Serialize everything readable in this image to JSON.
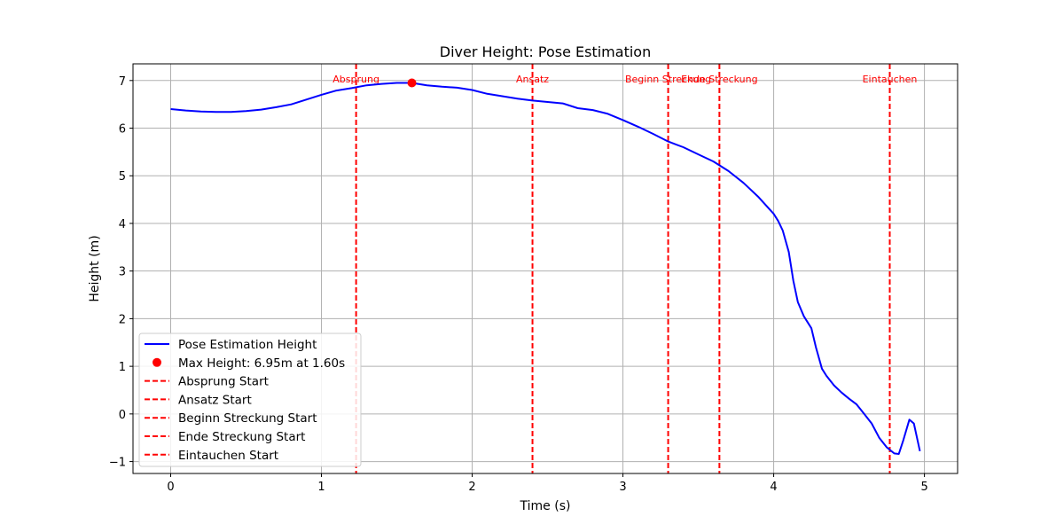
{
  "chart_data": {
    "type": "line",
    "title": "Diver Height: Pose Estimation",
    "xlabel": "Time (s)",
    "ylabel": "Height (m)",
    "xlim": [
      -0.25,
      5.22
    ],
    "ylim": [
      -1.25,
      7.35
    ],
    "xticks": [
      0,
      1,
      2,
      3,
      4,
      5
    ],
    "yticks": [
      -1,
      0,
      1,
      2,
      3,
      4,
      5,
      6,
      7
    ],
    "grid": true,
    "legend_position": "lower-left",
    "colors": {
      "line": "#0000ff",
      "marker": "#ff0000",
      "events": "#ff0000",
      "grid": "#b0b0b0"
    },
    "series": [
      {
        "name": "Pose Estimation Height",
        "x": [
          0,
          0.1,
          0.2,
          0.3,
          0.4,
          0.5,
          0.6,
          0.7,
          0.8,
          0.9,
          1.0,
          1.1,
          1.2,
          1.3,
          1.4,
          1.5,
          1.6,
          1.7,
          1.8,
          1.9,
          2.0,
          2.1,
          2.2,
          2.3,
          2.4,
          2.5,
          2.6,
          2.7,
          2.8,
          2.9,
          3.0,
          3.1,
          3.2,
          3.3,
          3.4,
          3.5,
          3.6,
          3.7,
          3.8,
          3.9,
          4.0,
          4.03,
          4.06,
          4.1,
          4.13,
          4.16,
          4.2,
          4.25,
          4.28,
          4.32,
          4.35,
          4.4,
          4.45,
          4.5,
          4.55,
          4.6,
          4.65,
          4.7,
          4.75,
          4.8,
          4.83,
          4.86,
          4.9,
          4.93,
          4.97
        ],
        "y": [
          6.4,
          6.37,
          6.35,
          6.34,
          6.34,
          6.36,
          6.39,
          6.44,
          6.5,
          6.6,
          6.7,
          6.79,
          6.84,
          6.9,
          6.93,
          6.95,
          6.95,
          6.9,
          6.87,
          6.85,
          6.8,
          6.72,
          6.67,
          6.62,
          6.58,
          6.55,
          6.52,
          6.42,
          6.38,
          6.3,
          6.17,
          6.03,
          5.88,
          5.72,
          5.6,
          5.45,
          5.3,
          5.1,
          4.85,
          4.55,
          4.2,
          4.05,
          3.85,
          3.4,
          2.8,
          2.35,
          2.05,
          1.8,
          1.4,
          0.95,
          0.8,
          0.6,
          0.45,
          0.32,
          0.2,
          0.0,
          -0.2,
          -0.5,
          -0.7,
          -0.83,
          -0.84,
          -0.55,
          -0.12,
          -0.2,
          -0.78
        ]
      }
    ],
    "max_point": {
      "name": "Max Height: 6.95m at 1.60s",
      "x": 1.6,
      "y": 6.95
    },
    "events": [
      {
        "label": "Absprung",
        "legend": "Absprung Start",
        "x": 1.23
      },
      {
        "label": "Ansatz",
        "legend": "Ansatz Start",
        "x": 2.4
      },
      {
        "label": "Beginn Streckung",
        "legend": "Beginn Streckung Start",
        "x": 3.3
      },
      {
        "label": "Ende Streckung",
        "legend": "Ende Streckung Start",
        "x": 3.64
      },
      {
        "label": "Eintauchen",
        "legend": "Eintauchen Start",
        "x": 4.77
      }
    ]
  }
}
